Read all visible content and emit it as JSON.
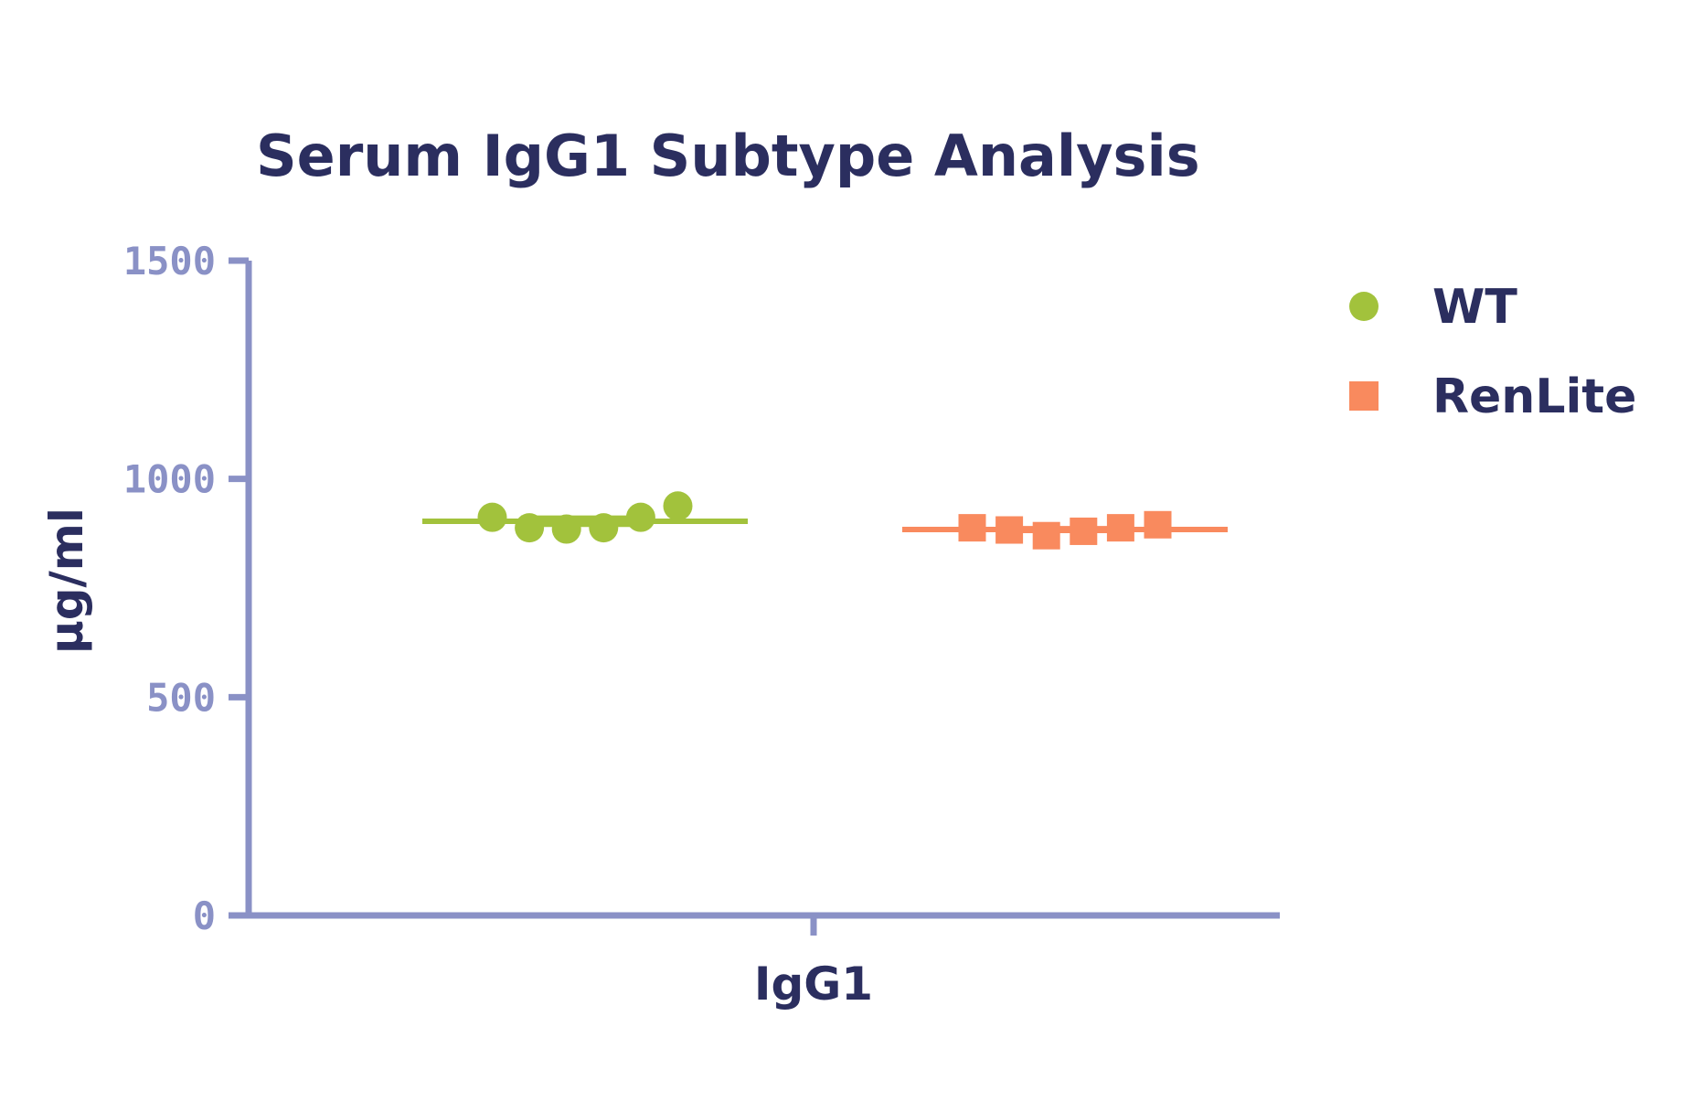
{
  "chart_data": {
    "type": "scatter",
    "title": "Serum IgG1 Subtype Analysis",
    "ylabel": "µg/ml",
    "xlabel": "",
    "categories": [
      "IgG1"
    ],
    "ylim": [
      0,
      1500
    ],
    "yticks": [
      "0",
      "500",
      "1000",
      "1500"
    ],
    "grid": false,
    "legend_placement": "top-right",
    "axis_color": "#8a91c6",
    "text_color": "#2b2e5f",
    "series": [
      {
        "name": "WT",
        "marker": "circle",
        "color": "#a2c23c",
        "category": "IgG1",
        "values": [
          912,
          888,
          885,
          888,
          912,
          938
        ],
        "mean": 903,
        "sem": 9
      },
      {
        "name": "RenLite",
        "marker": "square",
        "color": "#f98a5e",
        "category": "IgG1",
        "values": [
          888,
          883,
          870,
          880,
          888,
          895
        ],
        "mean": 884,
        "sem": 4
      }
    ]
  }
}
